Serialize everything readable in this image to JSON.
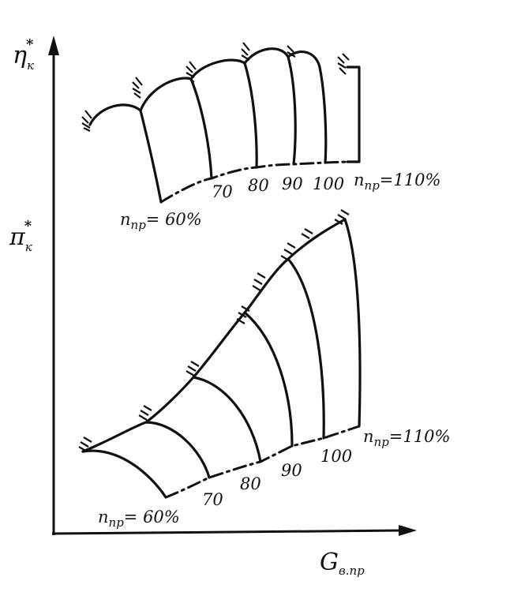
{
  "axis_labels": {
    "efficiency": {
      "symbol": "η",
      "sup": "*",
      "sub": "к"
    },
    "pressure_ratio": {
      "symbol": "π",
      "sup": "*",
      "sub": "к"
    },
    "flow": {
      "symbol": "G",
      "sub": "в.пр"
    }
  },
  "efficiency_map": {
    "speed_labels": [
      {
        "symbol": "n",
        "sub": "пр",
        "text": "= 60%"
      },
      {
        "text": "70"
      },
      {
        "text": "80"
      },
      {
        "text": "90"
      },
      {
        "text": "100"
      },
      {
        "symbol": "n",
        "sub": "пр",
        "text": "=110%"
      }
    ]
  },
  "pressure_map": {
    "speed_labels": [
      {
        "symbol": "n",
        "sub": "пр",
        "text": "= 60%"
      },
      {
        "text": "70"
      },
      {
        "text": "80"
      },
      {
        "text": "90"
      },
      {
        "text": "100"
      },
      {
        "symbol": "n",
        "sub": "пр",
        "text": "=110%"
      }
    ]
  }
}
